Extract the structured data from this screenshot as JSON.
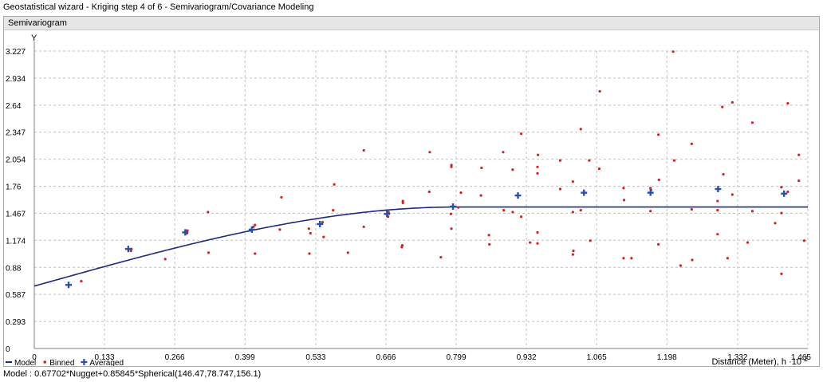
{
  "window": {
    "title": "Geostatistical wizard - Kriging step 4 of 6 - Semivariogram/Covariance Modeling"
  },
  "panel": {
    "title": "Semivariogram"
  },
  "status": {
    "model_text": "Model : 0.67702*Nugget+0.85845*Spherical(146.47,78.747,156.1)"
  },
  "chart_data": {
    "type": "scatter",
    "ylabel": "Y",
    "xlabel": "Distance (Meter), h ·10",
    "xlabel_exponent": "-2",
    "xlim": [
      0,
      1.465
    ],
    "ylim": [
      0,
      3.227
    ],
    "x_ticks": [
      "0",
      "0.133",
      "0.266",
      "0.399",
      "0.533",
      "0.666",
      "0.799",
      "0.932",
      "1.065",
      "1.198",
      "1.332",
      "1.465"
    ],
    "y_ticks": [
      "0",
      "0.293",
      "0.587",
      "0.88",
      "1.174",
      "1.467",
      "1.76",
      "2.054",
      "2.347",
      "2.64",
      "2.934",
      "3.227"
    ],
    "grid": true,
    "legend": {
      "position": "bottom-left",
      "entries": [
        {
          "label": "Model",
          "marker": "line",
          "color": "#1c2a80"
        },
        {
          "label": "Binned",
          "marker": "dot",
          "color": "#d61f1f"
        },
        {
          "label": "Averaged",
          "marker": "cross",
          "color": "#2950a8"
        }
      ]
    },
    "model": {
      "name": "Model",
      "nugget": 0.677,
      "partial_sill": 0.858,
      "range": 1.465,
      "color": "#1c2a80",
      "description": "0.67702*Nugget+0.85845*Spherical(146.47,78.747,156.1)",
      "range_note": "model rises from nugget and reaches sill around x=0.80"
    },
    "averaged": {
      "name": "Averaged",
      "color": "#2950a8",
      "points": [
        [
          0.065,
          0.69
        ],
        [
          0.178,
          1.08
        ],
        [
          0.286,
          1.26
        ],
        [
          0.412,
          1.29
        ],
        [
          0.541,
          1.35
        ],
        [
          0.668,
          1.46
        ],
        [
          0.793,
          1.54
        ],
        [
          0.916,
          1.66
        ],
        [
          1.041,
          1.69
        ],
        [
          1.167,
          1.69
        ],
        [
          1.295,
          1.73
        ],
        [
          1.42,
          1.68
        ]
      ]
    },
    "binned": {
      "name": "Binned",
      "color": "#d61f1f",
      "points": [
        [
          0.089,
          0.73
        ],
        [
          0.184,
          1.08
        ],
        [
          0.183,
          1.06
        ],
        [
          0.248,
          0.97
        ],
        [
          0.29,
          1.28
        ],
        [
          0.289,
          1.25
        ],
        [
          0.329,
          1.48
        ],
        [
          0.33,
          1.04
        ],
        [
          0.415,
          1.32
        ],
        [
          0.418,
          1.34
        ],
        [
          0.418,
          1.03
        ],
        [
          0.465,
          1.29
        ],
        [
          0.468,
          1.64
        ],
        [
          0.52,
          1.3
        ],
        [
          0.521,
          1.03
        ],
        [
          0.523,
          1.25
        ],
        [
          0.546,
          1.37
        ],
        [
          0.548,
          1.21
        ],
        [
          0.566,
          1.5
        ],
        [
          0.568,
          1.78
        ],
        [
          0.594,
          1.04
        ],
        [
          0.624,
          2.15
        ],
        [
          0.624,
          1.32
        ],
        [
          0.67,
          1.43
        ],
        [
          0.671,
          1.48
        ],
        [
          0.698,
          1.6
        ],
        [
          0.698,
          1.58
        ],
        [
          0.697,
          1.12
        ],
        [
          0.696,
          1.1
        ],
        [
          0.748,
          1.7
        ],
        [
          0.749,
          2.13
        ],
        [
          0.79,
          1.99
        ],
        [
          0.79,
          1.97
        ],
        [
          0.789,
          1.46
        ],
        [
          0.79,
          1.3
        ],
        [
          0.803,
          1.53
        ],
        [
          0.808,
          1.69
        ],
        [
          0.77,
          0.99
        ],
        [
          0.847,
          1.96
        ],
        [
          0.846,
          1.66
        ],
        [
          0.861,
          1.23
        ],
        [
          0.862,
          1.13
        ],
        [
          0.888,
          2.13
        ],
        [
          0.889,
          1.5
        ],
        [
          0.906,
          1.94
        ],
        [
          0.906,
          1.48
        ],
        [
          0.922,
          2.33
        ],
        [
          0.922,
          1.43
        ],
        [
          0.939,
          1.15
        ],
        [
          0.954,
          2.1
        ],
        [
          0.953,
          1.97
        ],
        [
          0.953,
          1.9
        ],
        [
          0.953,
          1.26
        ],
        [
          0.953,
          1.14
        ],
        [
          0.996,
          2.04
        ],
        [
          0.996,
          1.73
        ],
        [
          1.02,
          1.81
        ],
        [
          1.02,
          1.48
        ],
        [
          1.021,
          1.06
        ],
        [
          1.02,
          1.02
        ],
        [
          1.035,
          2.38
        ],
        [
          1.035,
          1.5
        ],
        [
          1.051,
          2.04
        ],
        [
          1.053,
          1.17
        ],
        [
          1.071,
          2.79
        ],
        [
          1.07,
          1.95
        ],
        [
          1.116,
          1.74
        ],
        [
          1.117,
          1.61
        ],
        [
          1.116,
          0.98
        ],
        [
          1.131,
          0.98
        ],
        [
          1.167,
          1.74
        ],
        [
          1.168,
          1.72
        ],
        [
          1.167,
          1.49
        ],
        [
          1.182,
          2.32
        ],
        [
          1.183,
          1.83
        ],
        [
          1.182,
          1.13
        ],
        [
          1.21,
          3.22
        ],
        [
          1.212,
          2.04
        ],
        [
          1.224,
          0.9
        ],
        [
          1.245,
          2.22
        ],
        [
          1.245,
          1.51
        ],
        [
          1.246,
          0.96
        ],
        [
          1.294,
          1.6
        ],
        [
          1.294,
          1.5
        ],
        [
          1.294,
          1.24
        ],
        [
          1.303,
          2.62
        ],
        [
          1.305,
          1.89
        ],
        [
          1.313,
          0.98
        ],
        [
          1.322,
          2.67
        ],
        [
          1.322,
          1.67
        ],
        [
          1.351,
          1.15
        ],
        [
          1.36,
          2.45
        ],
        [
          1.36,
          1.49
        ],
        [
          1.403,
          1.36
        ],
        [
          1.415,
          1.75
        ],
        [
          1.415,
          1.47
        ],
        [
          1.415,
          0.81
        ],
        [
          1.427,
          2.66
        ],
        [
          1.427,
          1.7
        ],
        [
          1.448,
          2.1
        ],
        [
          1.448,
          1.82
        ],
        [
          1.458,
          1.17
        ]
      ]
    }
  }
}
